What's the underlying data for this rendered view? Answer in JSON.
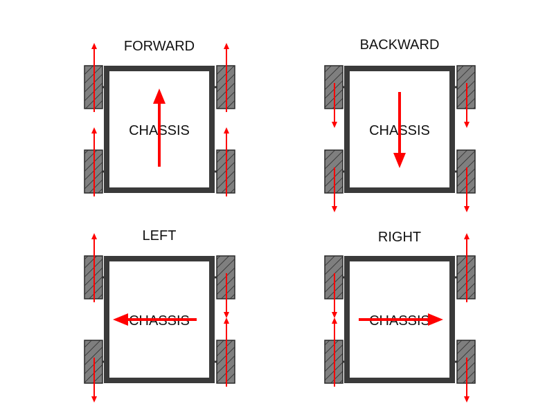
{
  "colors": {
    "background": "#ffffff",
    "chassis_border": "#3a3a3a",
    "wheel_fill": "#7f7f7f",
    "wheel_hatch": "#2a2a2a",
    "arrow": "#ff0000"
  },
  "panels": [
    {
      "title": "FORWARD",
      "chassis_label": "CHASSIS",
      "motion": "up",
      "wheels": {
        "front_left": "up",
        "front_right": "up",
        "rear_left": "up",
        "rear_right": "up"
      }
    },
    {
      "title": "BACKWARD",
      "chassis_label": "CHASSIS",
      "motion": "down",
      "wheels": {
        "front_left": "down",
        "front_right": "down",
        "rear_left": "down",
        "rear_right": "down"
      }
    },
    {
      "title": "LEFT",
      "chassis_label": "CHASSIS",
      "motion": "left",
      "wheels": {
        "front_left": "up",
        "front_right": "down",
        "rear_left": "down",
        "rear_right": "up"
      }
    },
    {
      "title": "RIGHT",
      "chassis_label": "CHASSIS",
      "motion": "right",
      "wheels": {
        "front_left": "down",
        "front_right": "up",
        "rear_left": "up",
        "rear_right": "down"
      }
    }
  ]
}
